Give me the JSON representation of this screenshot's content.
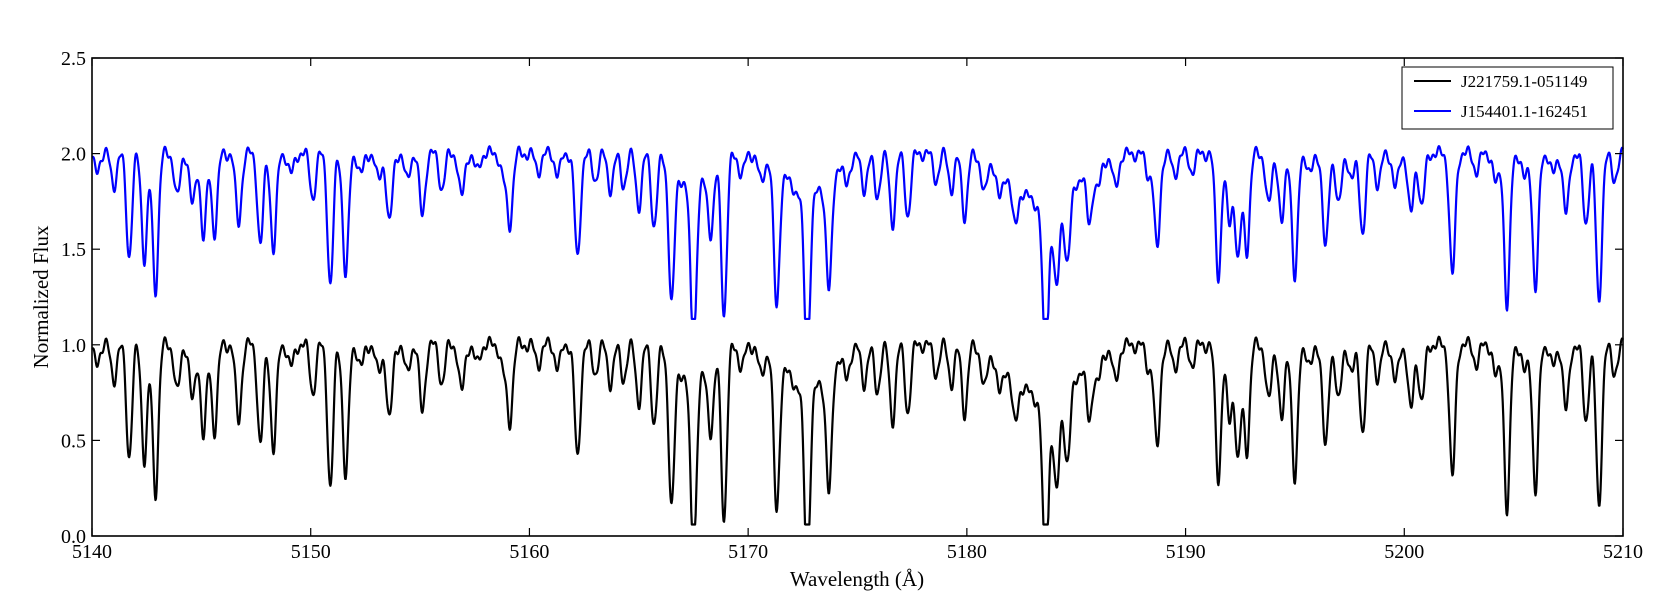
{
  "chart_data": {
    "type": "line",
    "title": "",
    "xlabel": "Wavelength (Å)",
    "ylabel": "Normalized Flux",
    "xlim": [
      5140,
      5210
    ],
    "ylim": [
      0.0,
      2.5
    ],
    "xticks": [
      5140,
      5150,
      5160,
      5170,
      5180,
      5190,
      5200,
      5210
    ],
    "xtick_labels": [
      "5140",
      "5150",
      "5160",
      "5170",
      "5180",
      "5190",
      "5200",
      "5210"
    ],
    "yticks": [
      0.0,
      0.5,
      1.0,
      1.5,
      2.0,
      2.5
    ],
    "ytick_labels": [
      "0.0",
      "0.5",
      "1.0",
      "1.5",
      "2.0",
      "2.5"
    ],
    "grid": false,
    "legend_position": "top-right",
    "continuum": 1.0,
    "series": [
      {
        "name": "J221759.1-051149",
        "color": "#000000",
        "offset": 0.0,
        "depth_scale": 1.0
      },
      {
        "name": "J154401.1-162451",
        "color": "#0000ff",
        "offset": 1.0,
        "depth_scale": 0.92
      }
    ],
    "absorption_lines": [
      [
        5140.2,
        0.1
      ],
      [
        5141.0,
        0.18
      ],
      [
        5141.7,
        0.58
      ],
      [
        5142.4,
        0.6
      ],
      [
        5142.9,
        0.78
      ],
      [
        5143.9,
        0.25
      ],
      [
        5144.6,
        0.3
      ],
      [
        5145.1,
        0.48
      ],
      [
        5145.6,
        0.45
      ],
      [
        5146.7,
        0.4
      ],
      [
        5147.7,
        0.52
      ],
      [
        5148.3,
        0.55
      ],
      [
        5149.1,
        0.12
      ],
      [
        5150.1,
        0.25
      ],
      [
        5150.9,
        0.75
      ],
      [
        5151.6,
        0.7
      ],
      [
        5152.3,
        0.12
      ],
      [
        5153.1,
        0.15
      ],
      [
        5153.6,
        0.4
      ],
      [
        5154.4,
        0.15
      ],
      [
        5155.1,
        0.35
      ],
      [
        5156.0,
        0.2
      ],
      [
        5156.9,
        0.25
      ],
      [
        5157.6,
        0.1
      ],
      [
        5158.8,
        0.12
      ],
      [
        5159.1,
        0.4
      ],
      [
        5160.4,
        0.1
      ],
      [
        5161.3,
        0.12
      ],
      [
        5162.2,
        0.6
      ],
      [
        5163.0,
        0.15
      ],
      [
        5163.7,
        0.2
      ],
      [
        5164.3,
        0.18
      ],
      [
        5165.0,
        0.3
      ],
      [
        5165.7,
        0.4
      ],
      [
        5166.5,
        0.78
      ],
      [
        5167.5,
        0.92
      ],
      [
        5168.3,
        0.35
      ],
      [
        5168.9,
        0.88
      ],
      [
        5169.7,
        0.12
      ],
      [
        5170.6,
        0.15
      ],
      [
        5171.3,
        0.8
      ],
      [
        5172.7,
        0.91
      ],
      [
        5173.7,
        0.65
      ],
      [
        5174.5,
        0.15
      ],
      [
        5175.3,
        0.2
      ],
      [
        5175.9,
        0.25
      ],
      [
        5176.6,
        0.4
      ],
      [
        5177.3,
        0.35
      ],
      [
        5178.6,
        0.15
      ],
      [
        5179.3,
        0.2
      ],
      [
        5179.9,
        0.35
      ],
      [
        5180.8,
        0.2
      ],
      [
        5181.5,
        0.18
      ],
      [
        5182.2,
        0.25
      ],
      [
        5183.6,
        0.92
      ],
      [
        5184.1,
        0.5
      ],
      [
        5184.6,
        0.4
      ],
      [
        5185.6,
        0.3
      ],
      [
        5186.0,
        0.15
      ],
      [
        5186.8,
        0.18
      ],
      [
        5188.3,
        0.12
      ],
      [
        5188.7,
        0.55
      ],
      [
        5189.5,
        0.12
      ],
      [
        5190.3,
        0.1
      ],
      [
        5191.5,
        0.7
      ],
      [
        5192.0,
        0.4
      ],
      [
        5192.4,
        0.6
      ],
      [
        5192.8,
        0.55
      ],
      [
        5193.8,
        0.3
      ],
      [
        5194.4,
        0.4
      ],
      [
        5195.0,
        0.72
      ],
      [
        5195.7,
        0.12
      ],
      [
        5196.4,
        0.55
      ],
      [
        5197.0,
        0.3
      ],
      [
        5197.6,
        0.15
      ],
      [
        5198.1,
        0.45
      ],
      [
        5198.8,
        0.18
      ],
      [
        5199.6,
        0.2
      ],
      [
        5200.3,
        0.35
      ],
      [
        5200.8,
        0.3
      ],
      [
        5202.2,
        0.7
      ],
      [
        5203.3,
        0.1
      ],
      [
        5204.2,
        0.18
      ],
      [
        5204.7,
        0.88
      ],
      [
        5205.5,
        0.15
      ],
      [
        5206.0,
        0.78
      ],
      [
        5206.8,
        0.12
      ],
      [
        5207.4,
        0.35
      ],
      [
        5208.3,
        0.4
      ],
      [
        5208.9,
        0.85
      ],
      [
        5209.6,
        0.15
      ]
    ],
    "line_width_A": 0.13,
    "broad_features": [
      {
        "center": 5183.6,
        "width_A": 1.3,
        "depth": 0.3
      },
      {
        "center": 5172.7,
        "width_A": 0.9,
        "depth": 0.25
      },
      {
        "center": 5167.5,
        "width_A": 0.7,
        "depth": 0.2
      }
    ]
  }
}
